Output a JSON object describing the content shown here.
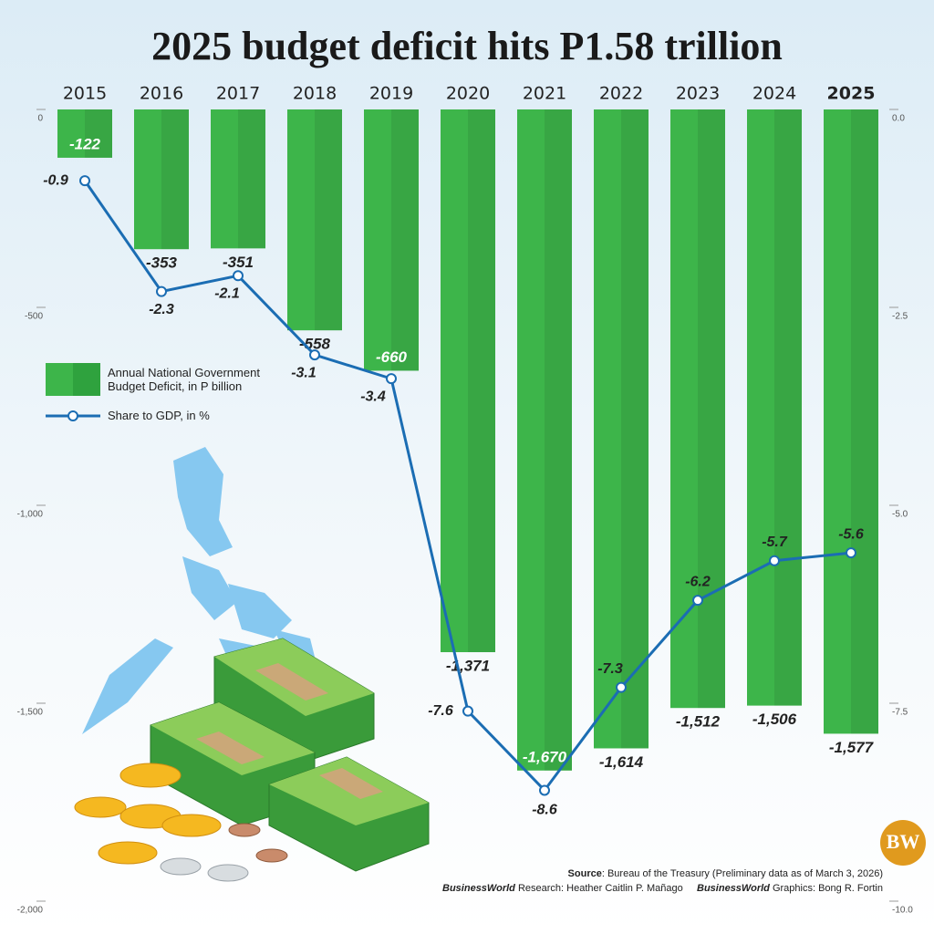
{
  "chart_data": {
    "type": "bar-line",
    "title": "2025 budget deficit hits P1.58 trillion",
    "categories": [
      "2015",
      "2016",
      "2017",
      "2018",
      "2019",
      "2020",
      "2021",
      "2022",
      "2023",
      "2024",
      "2025"
    ],
    "series": [
      {
        "name": "Annual National Government Budget Deficit, in P billion",
        "type": "bar",
        "axis": "y",
        "color": "#3db54a",
        "values": [
          -122,
          -353,
          -351,
          -558,
          -660,
          -1371,
          -1670,
          -1614,
          -1512,
          -1506,
          -1577
        ],
        "value_labels": [
          "-122",
          "-353",
          "-351",
          "-558",
          "-660",
          "-1,371",
          "-1,670",
          "-1,614",
          "-1,512",
          "-1,506",
          "-1,577"
        ]
      },
      {
        "name": "Share to GDP, in %",
        "type": "line",
        "axis": "y2",
        "color": "#1b6db3",
        "values": [
          -0.9,
          -2.3,
          -2.1,
          -3.1,
          -3.4,
          -7.6,
          -8.6,
          -7.3,
          -6.2,
          -5.7,
          -5.6
        ]
      }
    ],
    "ylim": [
      0,
      -2000
    ],
    "yticks": [
      0,
      -500,
      {
        "value": -1000,
        "label": "-1,000"
      },
      {
        "value": -1500,
        "label": "-1,500"
      },
      {
        "value": -2000,
        "label": "-2,000"
      }
    ],
    "y2lim": [
      0,
      -10
    ],
    "y2ticks": [
      {
        "value": 0,
        "label": "0.0"
      },
      -2.5,
      {
        "value": -5,
        "label": "-5.0"
      },
      -7.5,
      {
        "value": -10,
        "label": "-10.0"
      }
    ],
    "legend": "left",
    "source_label": "Source",
    "source": ": Bureau of the Treasury (Preliminary data as of March 3, 2026)",
    "credits": [
      {
        "org": "BusinessWorld",
        "role": " Research: Heather Caitlin P. Mañago"
      },
      {
        "org": "BusinessWorld",
        "role": " Graphics: Bong R. Fortin"
      }
    ],
    "logo": "BW"
  }
}
